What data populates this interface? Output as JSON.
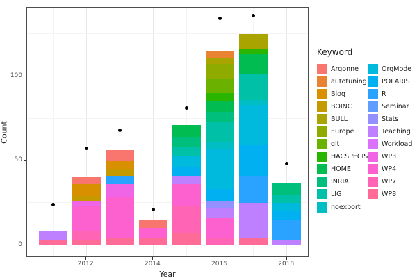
{
  "chart_data": {
    "type": "bar",
    "subtype": "stacked_bar_with_points",
    "title": "",
    "xlabel": "Year",
    "ylabel": "Count",
    "x": [
      2011,
      2012,
      2013,
      2014,
      2015,
      2016,
      2017,
      2018
    ],
    "x_tick_years": [
      2012,
      2014,
      2016,
      2018
    ],
    "x_minor_years": [
      2011,
      2013,
      2015,
      2017
    ],
    "y_ticks": [
      0,
      50,
      100
    ],
    "y_minor_ticks": [
      25,
      75,
      125
    ],
    "ylim": [
      -7.5,
      140.5
    ],
    "grid": true,
    "legend_position": "right",
    "legend_title": "Keyword",
    "legend_columns": [
      [
        "Argonne",
        "autotuning",
        "Blog",
        "BOINC",
        "BULL",
        "Europe",
        "git",
        "HACSPECIS",
        "HOME",
        "INRIA",
        "LIG",
        "noexport"
      ],
      [
        "OrgMode",
        "POLARIS",
        "R",
        "Seminar",
        "Stats",
        "Teaching",
        "Workload",
        "WP3",
        "WP4",
        "WP7",
        "WP8"
      ]
    ],
    "colors": {
      "Argonne": "#F8766D",
      "autotuning": "#EA8331",
      "Blog": "#D89000",
      "BOINC": "#C49A00",
      "BULL": "#A9A400",
      "Europe": "#8FAB00",
      "git": "#6BB100",
      "HACSPECIS": "#2AB600",
      "HOME": "#00BC51",
      "INRIA": "#00BF7D",
      "LIG": "#00C0A7",
      "noexport": "#00BEC4",
      "OrgMode": "#00BADE",
      "POLARIS": "#00B0F1",
      "R": "#29A3FF",
      "Seminar": "#619CFF",
      "Stats": "#9490FF",
      "Teaching": "#BF80FF",
      "Workload": "#DB72FB",
      "WP3": "#F065E6",
      "WP4": "#FC61CF",
      "WP7": "#FF64B5",
      "WP8": "#FF6B97"
    },
    "stack_order": "bottom_to_top",
    "bars": [
      {
        "year": 2011,
        "total": 8,
        "segments": [
          {
            "keyword": "WP8",
            "value": 3
          },
          {
            "keyword": "Teaching",
            "value": 5
          }
        ]
      },
      {
        "year": 2012,
        "total": 40,
        "segments": [
          {
            "keyword": "WP8",
            "value": 3
          },
          {
            "keyword": "WP7",
            "value": 5
          },
          {
            "keyword": "WP4",
            "value": 15
          },
          {
            "keyword": "WP3",
            "value": 3
          },
          {
            "keyword": "BOINC",
            "value": 3
          },
          {
            "keyword": "Blog",
            "value": 7
          },
          {
            "keyword": "Argonne",
            "value": 4
          }
        ]
      },
      {
        "year": 2013,
        "total": 56,
        "segments": [
          {
            "keyword": "WP8",
            "value": 4
          },
          {
            "keyword": "WP4",
            "value": 24
          },
          {
            "keyword": "WP3",
            "value": 8
          },
          {
            "keyword": "R",
            "value": 5
          },
          {
            "keyword": "BOINC",
            "value": 4
          },
          {
            "keyword": "Blog",
            "value": 5
          },
          {
            "keyword": "Argonne",
            "value": 6
          }
        ]
      },
      {
        "year": 2014,
        "total": 15,
        "segments": [
          {
            "keyword": "WP8",
            "value": 4
          },
          {
            "keyword": "WP4",
            "value": 6
          },
          {
            "keyword": "Argonne",
            "value": 5
          }
        ]
      },
      {
        "year": 2015,
        "total": 71,
        "segments": [
          {
            "keyword": "WP8",
            "value": 7
          },
          {
            "keyword": "WP7",
            "value": 16
          },
          {
            "keyword": "WP4",
            "value": 13
          },
          {
            "keyword": "Teaching",
            "value": 5
          },
          {
            "keyword": "POLARIS",
            "value": 5
          },
          {
            "keyword": "OrgMode",
            "value": 7
          },
          {
            "keyword": "LIG",
            "value": 5
          },
          {
            "keyword": "INRIA",
            "value": 6
          },
          {
            "keyword": "HOME",
            "value": 7
          }
        ]
      },
      {
        "year": 2016,
        "total": 115,
        "segments": [
          {
            "keyword": "WP7",
            "value": 4
          },
          {
            "keyword": "WP4",
            "value": 12
          },
          {
            "keyword": "Teaching",
            "value": 6
          },
          {
            "keyword": "Stats",
            "value": 4
          },
          {
            "keyword": "POLARIS",
            "value": 7
          },
          {
            "keyword": "OrgMode",
            "value": 24
          },
          {
            "keyword": "noexport",
            "value": 4
          },
          {
            "keyword": "LIG",
            "value": 12
          },
          {
            "keyword": "INRIA",
            "value": 6
          },
          {
            "keyword": "HOME",
            "value": 6
          },
          {
            "keyword": "HACSPECIS",
            "value": 5
          },
          {
            "keyword": "git",
            "value": 8
          },
          {
            "keyword": "Europe",
            "value": 9
          },
          {
            "keyword": "BULL",
            "value": 4
          },
          {
            "keyword": "autotuning",
            "value": 4
          }
        ]
      },
      {
        "year": 2017,
        "total": 125,
        "segments": [
          {
            "keyword": "WP8",
            "value": 4
          },
          {
            "keyword": "Teaching",
            "value": 21
          },
          {
            "keyword": "R",
            "value": 16
          },
          {
            "keyword": "POLARIS",
            "value": 18
          },
          {
            "keyword": "OrgMode",
            "value": 24
          },
          {
            "keyword": "noexport",
            "value": 3
          },
          {
            "keyword": "LIG",
            "value": 15
          },
          {
            "keyword": "HOME",
            "value": 12
          },
          {
            "keyword": "HACSPECIS",
            "value": 3
          },
          {
            "keyword": "BULL",
            "value": 9
          }
        ]
      },
      {
        "year": 2018,
        "total": 37,
        "segments": [
          {
            "keyword": "Teaching",
            "value": 3
          },
          {
            "keyword": "R",
            "value": 12
          },
          {
            "keyword": "POLARIS",
            "value": 5
          },
          {
            "keyword": "OrgMode",
            "value": 5
          },
          {
            "keyword": "LIG",
            "value": 5
          },
          {
            "keyword": "INRIA",
            "value": 7
          }
        ]
      }
    ],
    "points": [
      {
        "year": 2011,
        "value": 24
      },
      {
        "year": 2012,
        "value": 57
      },
      {
        "year": 2013,
        "value": 68
      },
      {
        "year": 2014,
        "value": 21
      },
      {
        "year": 2015,
        "value": 81
      },
      {
        "year": 2016,
        "value": 134
      },
      {
        "year": 2017,
        "value": 136
      },
      {
        "year": 2018,
        "value": 48
      }
    ]
  }
}
